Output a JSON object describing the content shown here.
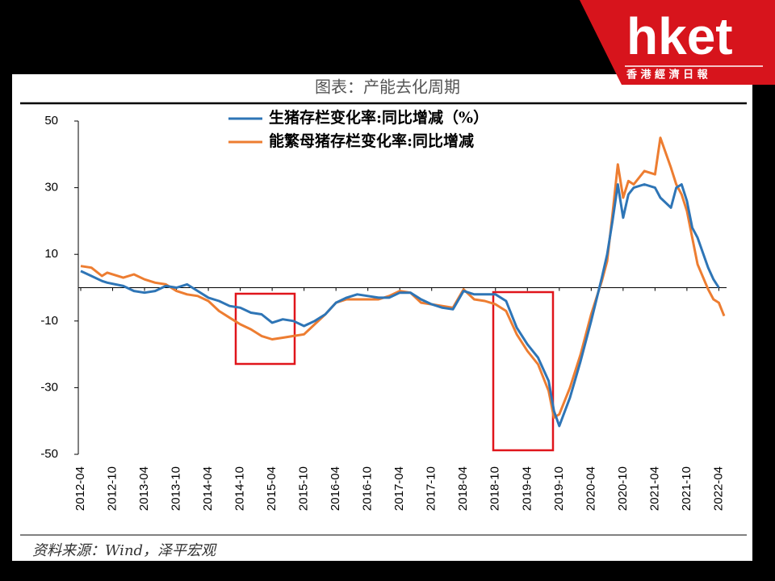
{
  "logo": {
    "brand": "hket",
    "subtitle": "香 港 經 濟 日 報"
  },
  "chart_data": {
    "type": "line",
    "title": "图表：产能去化周期",
    "source": "资料来源：Wind，泽平宏观",
    "x": [
      "2012-04",
      "2012-06",
      "2012-08",
      "2012-09",
      "2012-12",
      "2013-02",
      "2013-04",
      "2013-06",
      "2013-08",
      "2013-10",
      "2013-12",
      "2014-02",
      "2014-04",
      "2014-06",
      "2014-08",
      "2014-10",
      "2014-12",
      "2015-02",
      "2015-04",
      "2015-06",
      "2015-08",
      "2015-10",
      "2015-12",
      "2016-02",
      "2016-04",
      "2016-06",
      "2016-08",
      "2016-10",
      "2016-12",
      "2017-02",
      "2017-04",
      "2017-06",
      "2017-08",
      "2017-10",
      "2017-12",
      "2018-02",
      "2018-04",
      "2018-06",
      "2018-08",
      "2018-10",
      "2018-12",
      "2019-02",
      "2019-04",
      "2019-06",
      "2019-08",
      "2019-09",
      "2019-10",
      "2019-12",
      "2020-02",
      "2020-04",
      "2020-06",
      "2020-07",
      "2020-08",
      "2020-09",
      "2020-10",
      "2020-11",
      "2020-12",
      "2021-02",
      "2021-04",
      "2021-05",
      "2021-07",
      "2021-08",
      "2021-09",
      "2021-10",
      "2021-11",
      "2021-12",
      "2022-02",
      "2022-03",
      "2022-04",
      "2022-05"
    ],
    "series": [
      {
        "name": "生猪存栏变化率:同比增减（%）",
        "color": "#2e75b6",
        "values": [
          5,
          3.5,
          2,
          1.5,
          0.5,
          -1,
          -1.5,
          -1,
          0.5,
          0,
          1,
          -1,
          -3,
          -4,
          -5.5,
          -6,
          -7.5,
          -8,
          -10.5,
          -9.5,
          -10,
          -11.5,
          -10,
          -8,
          -4.5,
          -3,
          -2,
          -2.5,
          -3,
          -3,
          -1.5,
          -1.5,
          -3.5,
          -5,
          -6,
          -6.5,
          -1,
          -2,
          -2,
          -2,
          -4,
          -12,
          -17,
          -21,
          -28,
          -37,
          -41.5,
          -33,
          -22,
          -10,
          3,
          10,
          20,
          31,
          21,
          28,
          30,
          31,
          30,
          27,
          24,
          30,
          31,
          26,
          18,
          15,
          6,
          2.5,
          0,
          null
        ]
      },
      {
        "name": "能繁母猪存栏变化率:同比增减",
        "color": "#ed7d31",
        "values": [
          6.5,
          6,
          3.5,
          4.5,
          3,
          4,
          2.5,
          1.5,
          1,
          -1,
          -2,
          -2.5,
          -4,
          -7,
          -9,
          -11,
          -12.5,
          -14.5,
          -15.5,
          -15,
          -14.5,
          -14,
          -11,
          -8,
          -4.5,
          -3.5,
          -3.5,
          -3.5,
          -3.5,
          -2.5,
          -1,
          -1.5,
          -4.5,
          -5,
          -5.5,
          -6,
          -0.5,
          -3.5,
          -4,
          -5,
          -7,
          -14,
          -19,
          -23,
          -31,
          -39,
          -38,
          -30,
          -20,
          -8,
          2,
          8,
          22,
          37,
          27,
          32,
          31,
          35,
          34,
          45,
          36,
          31,
          28,
          23,
          15,
          7,
          -0.5,
          -3.5,
          -4.5,
          -8.5
        ]
      }
    ],
    "xlim": [
      "2012-04",
      "2022-05"
    ],
    "xticks": [
      "2012-04",
      "2012-10",
      "2013-04",
      "2013-10",
      "2014-04",
      "2014-10",
      "2015-04",
      "2015-10",
      "2016-04",
      "2016-10",
      "2017-04",
      "2017-10",
      "2018-04",
      "2018-10",
      "2019-04",
      "2019-10",
      "2020-04",
      "2020-10",
      "2021-04",
      "2021-10",
      "2022-04"
    ],
    "ylim": [
      -50,
      50
    ],
    "yticks": [
      -50,
      -30,
      -10,
      10,
      30,
      50
    ]
  }
}
